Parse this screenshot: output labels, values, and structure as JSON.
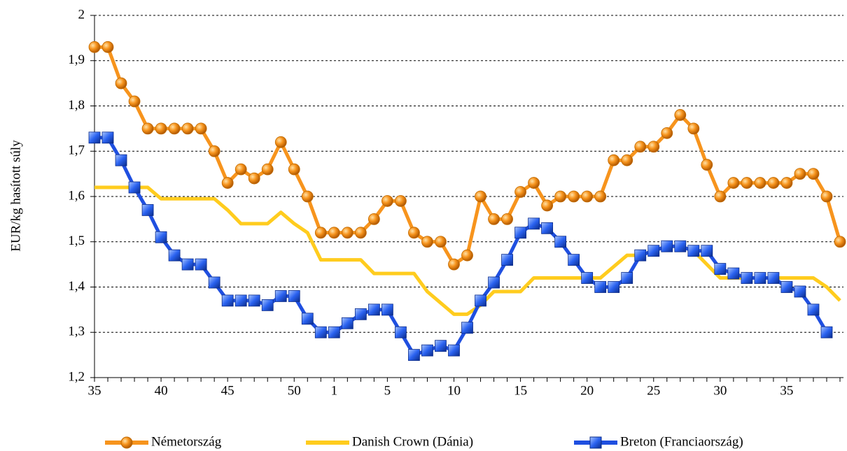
{
  "chart_data": {
    "type": "line",
    "y_label": "EUR/kg hasított súly",
    "categories": [
      "35",
      null,
      null,
      null,
      null,
      "40",
      null,
      null,
      null,
      null,
      "45",
      null,
      null,
      null,
      null,
      "50",
      null,
      null,
      "1",
      null,
      null,
      null,
      "5",
      null,
      null,
      null,
      null,
      "10",
      null,
      null,
      null,
      null,
      "15",
      null,
      null,
      null,
      null,
      "20",
      null,
      null,
      null,
      null,
      "25",
      null,
      null,
      null,
      null,
      "30",
      null,
      null,
      null,
      null,
      "35",
      null,
      null,
      null,
      null
    ],
    "series": [
      {
        "name": "Németország",
        "color": "#f7941d",
        "marker": "circle",
        "values": [
          1.93,
          1.93,
          1.85,
          1.81,
          1.75,
          1.75,
          1.75,
          1.75,
          1.75,
          1.7,
          1.63,
          1.66,
          1.64,
          1.66,
          1.72,
          1.66,
          1.6,
          1.52,
          1.52,
          1.52,
          1.52,
          1.55,
          1.59,
          1.59,
          1.52,
          1.5,
          1.5,
          1.45,
          1.47,
          1.6,
          1.55,
          1.55,
          1.61,
          1.63,
          1.58,
          1.6,
          1.6,
          1.6,
          1.6,
          1.68,
          1.68,
          1.71,
          1.71,
          1.74,
          1.78,
          1.75,
          1.67,
          1.6,
          1.63,
          1.63,
          1.63,
          1.63,
          1.63,
          1.65,
          1.65,
          1.6,
          1.5
        ]
      },
      {
        "name": "Danish Crown (Dánia)",
        "color": "#ffcc1e",
        "marker": "none",
        "values": [
          1.62,
          1.62,
          1.62,
          1.62,
          1.62,
          1.595,
          1.595,
          1.595,
          1.595,
          1.595,
          1.57,
          1.54,
          1.54,
          1.54,
          1.565,
          1.54,
          1.52,
          1.46,
          1.46,
          1.46,
          1.46,
          1.43,
          1.43,
          1.43,
          1.43,
          1.39,
          1.365,
          1.34,
          1.34,
          1.36,
          1.39,
          1.39,
          1.39,
          1.42,
          1.42,
          1.42,
          1.42,
          1.42,
          1.42,
          1.445,
          1.47,
          1.47,
          1.48,
          1.49,
          1.49,
          1.48,
          1.45,
          1.42,
          1.42,
          1.42,
          1.42,
          1.42,
          1.42,
          1.42,
          1.42,
          1.4,
          1.37
        ]
      },
      {
        "name": "Breton (Franciaország)",
        "color": "#1f4fe0",
        "marker": "square",
        "values": [
          1.73,
          1.73,
          1.68,
          1.62,
          1.57,
          1.51,
          1.47,
          1.45,
          1.45,
          1.41,
          1.37,
          1.37,
          1.37,
          1.36,
          1.38,
          1.38,
          1.33,
          1.3,
          1.3,
          1.32,
          1.34,
          1.35,
          1.35,
          1.3,
          1.25,
          1.26,
          1.27,
          1.26,
          1.31,
          1.37,
          1.41,
          1.46,
          1.52,
          1.54,
          1.53,
          1.5,
          1.46,
          1.42,
          1.4,
          1.4,
          1.42,
          1.47,
          1.48,
          1.49,
          1.49,
          1.48,
          1.48,
          1.44,
          1.43,
          1.42,
          1.42,
          1.42,
          1.4,
          1.39,
          1.35,
          1.3,
          null
        ]
      }
    ],
    "ylim": [
      1.2,
      2
    ],
    "yticks": [
      {
        "value": 1.2,
        "label": "1,2"
      },
      {
        "value": 1.3,
        "label": "1,3"
      },
      {
        "value": 1.4,
        "label": "1,4"
      },
      {
        "value": 1.5,
        "label": "1,5"
      },
      {
        "value": 1.6,
        "label": "1,6"
      },
      {
        "value": 1.7,
        "label": "1,7"
      },
      {
        "value": 1.8,
        "label": "1,8"
      },
      {
        "value": 1.9,
        "label": "1,9"
      },
      {
        "value": 2,
        "label": "2"
      }
    ],
    "grid": true,
    "legend": "bottom"
  }
}
